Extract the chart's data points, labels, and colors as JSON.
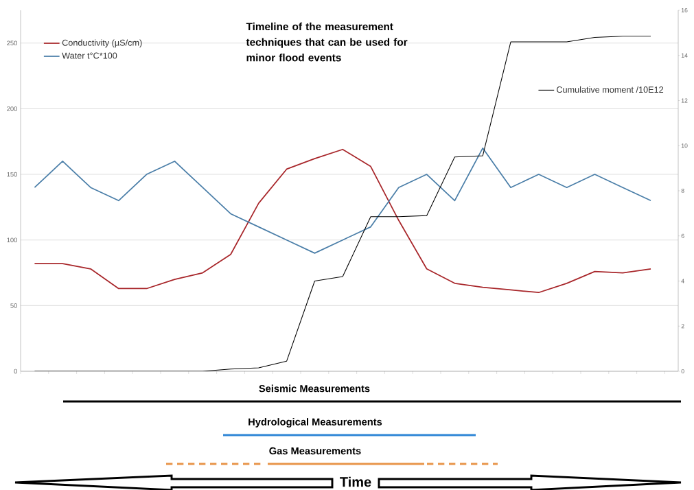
{
  "chart_data": {
    "type": "line",
    "title": "Timeline of the measurement techniques that can be used for minor flood events",
    "annotations": [
      "Seismic Measurements",
      "Hydrological Measurements",
      "Gas Measurements",
      "Time"
    ],
    "categories": [
      null,
      null,
      null,
      null,
      null,
      null,
      null,
      null,
      null,
      null,
      null,
      null,
      null,
      null,
      null,
      null,
      null,
      null,
      null,
      null,
      null,
      null,
      null
    ],
    "ylim": [
      0,
      275
    ],
    "yticks": [
      0,
      50,
      100,
      150,
      200,
      250
    ],
    "y2lim": [
      0,
      16
    ],
    "y2ticks": [
      0,
      2,
      4,
      6,
      8,
      10,
      12,
      14,
      16
    ],
    "grid": "y",
    "legend": "top left",
    "marker": "none",
    "line_style": "solid",
    "series": [
      {
        "name": "Conductivity (µS/cm)",
        "color": "#a8262a",
        "values": [
          82,
          82,
          78,
          63,
          63,
          70,
          75,
          89,
          128,
          154,
          162,
          169,
          156,
          115,
          78,
          67,
          64,
          62,
          60,
          67,
          76,
          75,
          78
        ]
      },
      {
        "name": "Water t°C*100",
        "color": "#4a7ea8",
        "values": [
          140,
          160,
          140,
          130,
          150,
          160,
          140,
          120,
          110,
          100,
          90,
          100,
          110,
          140,
          150,
          130,
          170,
          140,
          150,
          140,
          150,
          140,
          130
        ]
      },
      {
        "name": "Cumulative moment /10E12",
        "color": "#000000",
        "axis": "y2",
        "values": [
          0,
          0,
          0,
          0,
          0,
          0,
          0,
          0.1,
          0.15,
          0.45,
          4,
          4.2,
          6.85,
          6.85,
          6.9,
          9.5,
          9.55,
          14.6,
          14.6,
          14.6,
          14.8,
          14.85,
          14.85
        ]
      }
    ]
  }
}
